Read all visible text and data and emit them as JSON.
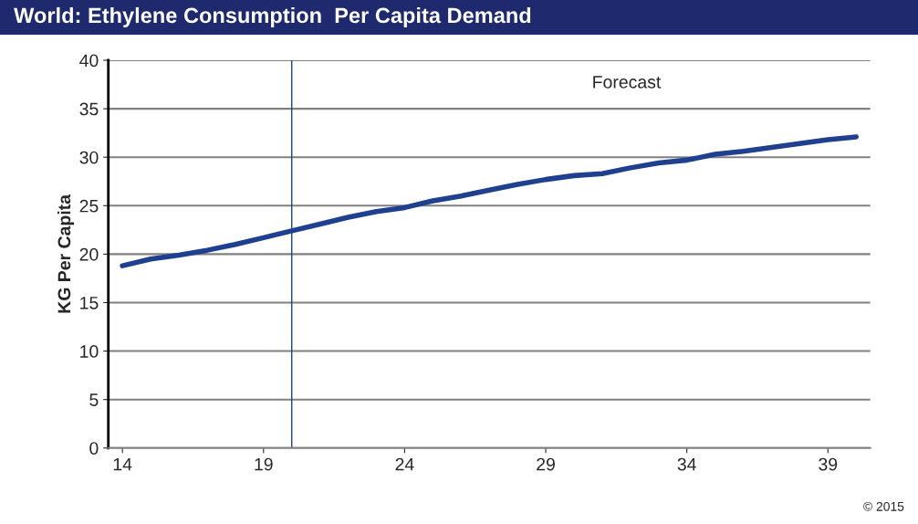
{
  "chart_data": {
    "type": "line",
    "title": "World: Ethylene Consumption  Per Capita Demand",
    "ylabel": "KG Per Capita",
    "x": [
      14,
      15,
      16,
      17,
      18,
      19,
      20,
      21,
      22,
      23,
      24,
      25,
      26,
      27,
      28,
      29,
      30,
      31,
      32,
      33,
      34,
      35,
      36,
      37,
      38,
      39,
      40
    ],
    "series": [
      {
        "color": "#1f3f8f",
        "values": [
          18.8,
          19.5,
          19.9,
          20.4,
          21.0,
          21.7,
          22.4,
          23.1,
          23.8,
          24.4,
          24.8,
          25.5,
          26.0,
          26.6,
          27.2,
          27.7,
          28.1,
          28.3,
          28.9,
          29.4,
          29.7,
          30.3,
          30.6,
          31.0,
          31.4,
          31.8,
          32.1
        ]
      }
    ],
    "xlim": [
      13.5,
      40.5
    ],
    "xticks": [
      14,
      19,
      24,
      29,
      34,
      39
    ],
    "ylim": [
      0,
      40
    ],
    "yticks": [
      0,
      5,
      10,
      15,
      20,
      25,
      30,
      35,
      40
    ],
    "grid": "y",
    "legend": false,
    "marker": "none",
    "line_style": "solid",
    "ref_lines": [
      {
        "axis": "x",
        "value": 20,
        "color": "#1f3f8f",
        "line_style": "solid"
      }
    ],
    "annotations": [
      "Forecast",
      "© 2015"
    ]
  }
}
